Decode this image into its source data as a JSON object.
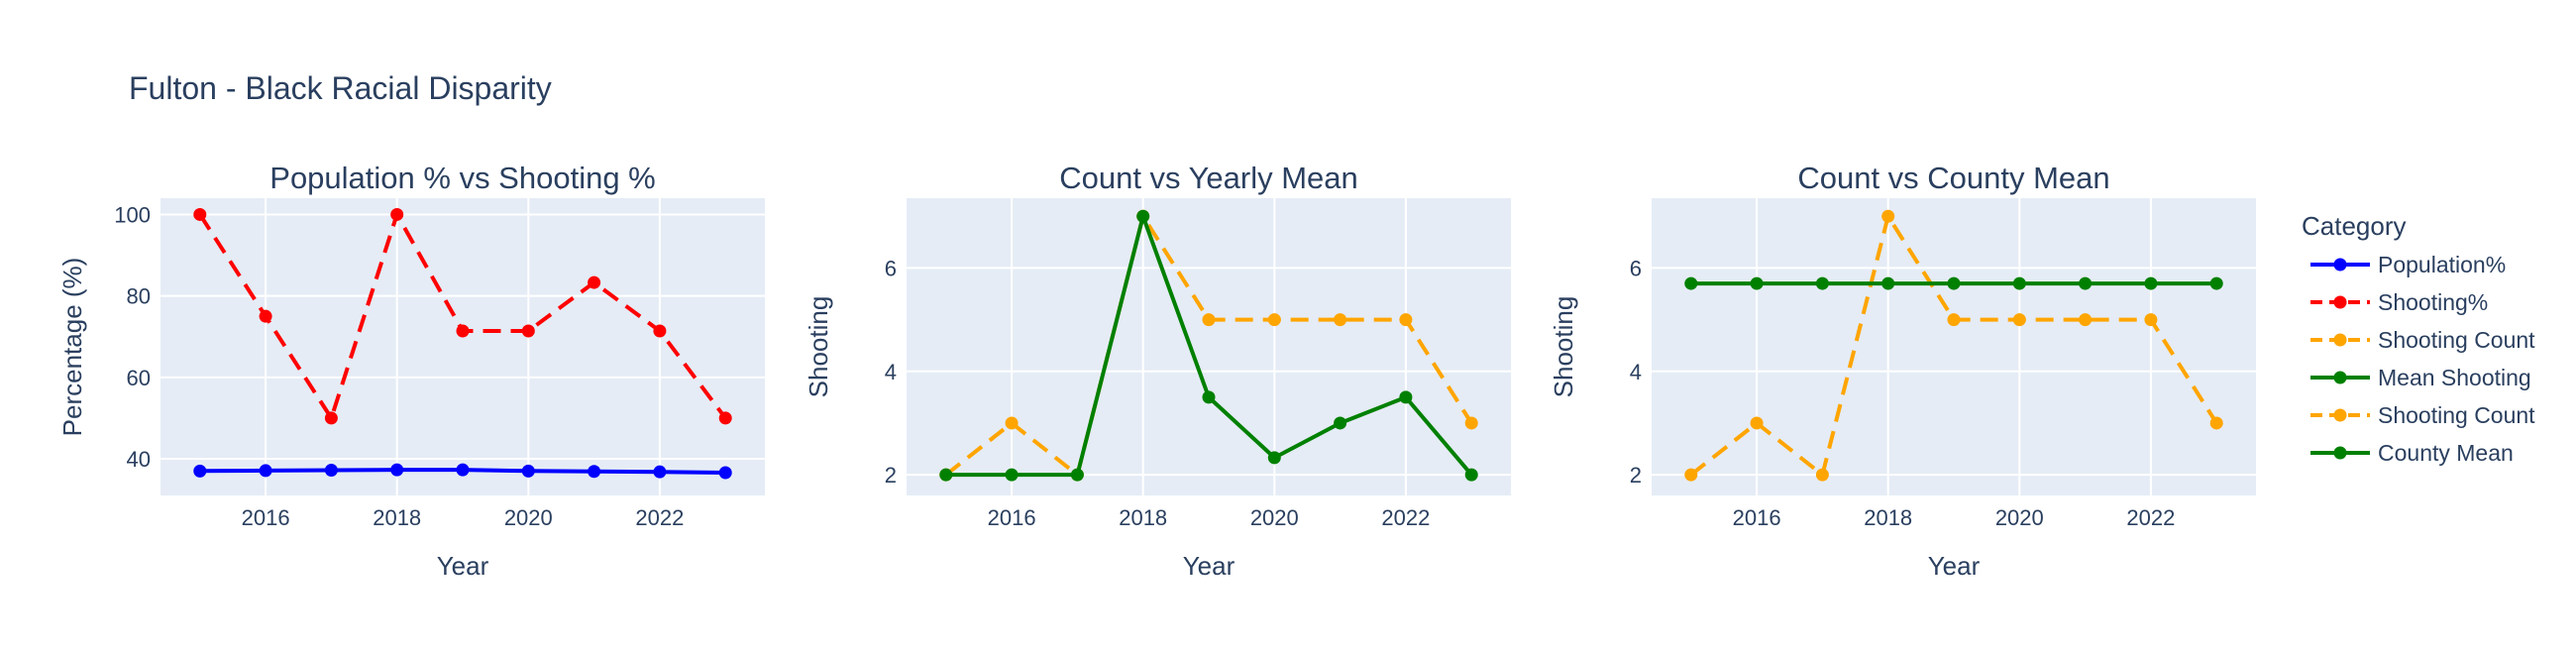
{
  "figure": {
    "title": "Fulton - Black Racial Disparity",
    "legend_title": "Category",
    "legend_position": "right",
    "plot_background": "#E5ECF6",
    "grid": true,
    "text_color": "#2A3F5F"
  },
  "chart_data": [
    {
      "type": "line",
      "title": "Population % vs Shooting %",
      "xlabel": "Year",
      "ylabel": "Percentage (%)",
      "xlim": [
        2014.4,
        2023.6
      ],
      "ylim": [
        31,
        104
      ],
      "xticks": [
        2016,
        2018,
        2020,
        2022
      ],
      "yticks": [
        40,
        60,
        80,
        100
      ],
      "x": [
        2015,
        2016,
        2017,
        2018,
        2019,
        2020,
        2021,
        2022,
        2023
      ],
      "series": [
        {
          "name": "Population%",
          "color": "#0000FF",
          "dash": "solid",
          "values": [
            37.0,
            37.1,
            37.2,
            37.3,
            37.3,
            37.0,
            36.9,
            36.8,
            36.6
          ]
        },
        {
          "name": "Shooting%",
          "color": "#FF0000",
          "dash": "dash",
          "values": [
            100,
            75,
            50,
            100,
            71.4,
            71.4,
            83.3,
            71.4,
            50
          ]
        }
      ]
    },
    {
      "type": "line",
      "title": "Count vs Yearly Mean",
      "xlabel": "Year",
      "ylabel": "Shooting",
      "xlim": [
        2014.4,
        2023.6
      ],
      "ylim": [
        1.6,
        7.35
      ],
      "xticks": [
        2016,
        2018,
        2020,
        2022
      ],
      "yticks": [
        2,
        4,
        6
      ],
      "x": [
        2015,
        2016,
        2017,
        2018,
        2019,
        2020,
        2021,
        2022,
        2023
      ],
      "series": [
        {
          "name": "Shooting Count",
          "color": "#FFA500",
          "dash": "dash",
          "values": [
            2,
            3,
            2,
            7,
            5,
            5,
            5,
            5,
            3
          ]
        },
        {
          "name": "Mean Shooting",
          "color": "#008000",
          "dash": "solid",
          "values": [
            2,
            2,
            2,
            7,
            3.5,
            2.33,
            3,
            3.5,
            2
          ]
        }
      ]
    },
    {
      "type": "line",
      "title": "Count vs County Mean",
      "xlabel": "Year",
      "ylabel": "Shooting",
      "xlim": [
        2014.4,
        2023.6
      ],
      "ylim": [
        1.6,
        7.35
      ],
      "xticks": [
        2016,
        2018,
        2020,
        2022
      ],
      "yticks": [
        2,
        4,
        6
      ],
      "x": [
        2015,
        2016,
        2017,
        2018,
        2019,
        2020,
        2021,
        2022,
        2023
      ],
      "series": [
        {
          "name": "Shooting Count",
          "color": "#FFA500",
          "dash": "dash",
          "values": [
            2,
            3,
            2,
            7,
            5,
            5,
            5,
            5,
            3
          ]
        },
        {
          "name": "County Mean",
          "color": "#008000",
          "dash": "solid",
          "values": [
            5.7,
            5.7,
            5.7,
            5.7,
            5.7,
            5.7,
            5.7,
            5.7,
            5.7
          ]
        }
      ]
    }
  ],
  "legend": {
    "items": [
      {
        "name": "Population%",
        "color": "#0000FF",
        "dash": "solid"
      },
      {
        "name": "Shooting%",
        "color": "#FF0000",
        "dash": "dash"
      },
      {
        "name": "Shooting Count",
        "color": "#FFA500",
        "dash": "dash"
      },
      {
        "name": "Mean Shooting",
        "color": "#008000",
        "dash": "solid"
      },
      {
        "name": "Shooting Count",
        "color": "#FFA500",
        "dash": "dash"
      },
      {
        "name": "County Mean",
        "color": "#008000",
        "dash": "solid"
      }
    ]
  }
}
